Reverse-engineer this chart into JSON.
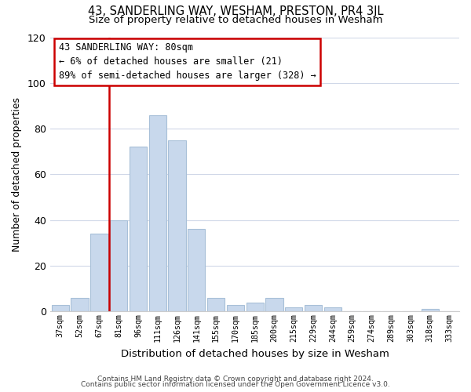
{
  "title": "43, SANDERLING WAY, WESHAM, PRESTON, PR4 3JL",
  "subtitle": "Size of property relative to detached houses in Wesham",
  "xlabel": "Distribution of detached houses by size in Wesham",
  "ylabel": "Number of detached properties",
  "bar_color": "#c8d8ec",
  "bar_edge_color": "#a8c0d8",
  "categories": [
    "37sqm",
    "52sqm",
    "67sqm",
    "81sqm",
    "96sqm",
    "111sqm",
    "126sqm",
    "141sqm",
    "155sqm",
    "170sqm",
    "185sqm",
    "200sqm",
    "215sqm",
    "229sqm",
    "244sqm",
    "259sqm",
    "274sqm",
    "289sqm",
    "303sqm",
    "318sqm",
    "333sqm"
  ],
  "values": [
    3,
    6,
    34,
    40,
    72,
    86,
    75,
    36,
    6,
    3,
    4,
    6,
    2,
    3,
    2,
    0,
    0,
    0,
    0,
    1,
    0
  ],
  "ylim": [
    0,
    120
  ],
  "yticks": [
    0,
    20,
    40,
    60,
    80,
    100,
    120
  ],
  "vline_index": 3,
  "vline_color": "#cc0000",
  "annotation_title": "43 SANDERLING WAY: 80sqm",
  "annotation_line1": "← 6% of detached houses are smaller (21)",
  "annotation_line2": "89% of semi-detached houses are larger (328) →",
  "footer_line1": "Contains HM Land Registry data © Crown copyright and database right 2024.",
  "footer_line2": "Contains public sector information licensed under the Open Government Licence v3.0.",
  "bg_color": "#ffffff",
  "grid_color": "#d0d8e8"
}
